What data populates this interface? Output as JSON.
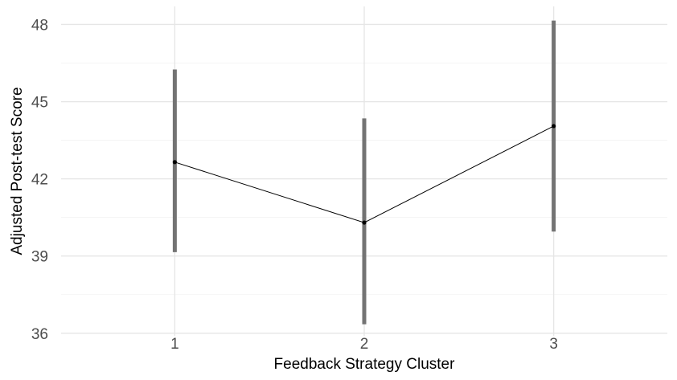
{
  "chart_data": {
    "type": "line",
    "xlabel": "Feedback Strategy Cluster",
    "ylabel": "Adjusted Post-test Score",
    "categories": [
      "1",
      "2",
      "3"
    ],
    "x": [
      1,
      2,
      3
    ],
    "xlim": [
      0.4,
      3.6
    ],
    "ylim": [
      35.9,
      48.7
    ],
    "yticks": [
      36,
      39,
      42,
      45,
      48
    ],
    "series": [
      {
        "values": [
          42.65,
          40.3,
          44.05
        ],
        "lower": [
          39.15,
          36.35,
          39.95
        ],
        "upper": [
          46.25,
          44.35,
          48.15
        ]
      }
    ],
    "grid": true,
    "legend": "none",
    "colors": {
      "line": "#000000",
      "errorbar": "#737373",
      "grid_major": "#e6e6e6",
      "grid_minor": "#f2f2f2",
      "tick_text": "#4d4d4d"
    }
  }
}
